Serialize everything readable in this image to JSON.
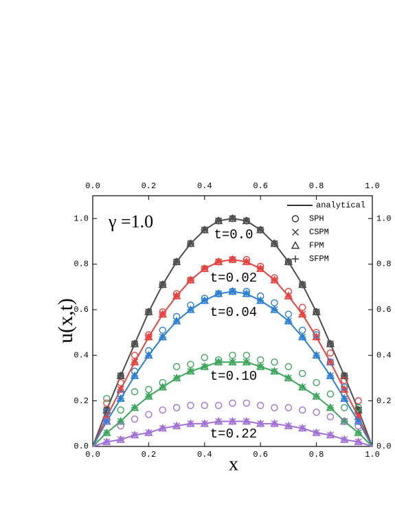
{
  "chart_data": {
    "type": "line",
    "annotation": "γ =1.0",
    "xlabel": "x",
    "ylabel": "u(x,t)",
    "x": [
      0,
      0.05,
      0.1,
      0.15,
      0.2,
      0.25,
      0.3,
      0.35,
      0.4,
      0.45,
      0.5,
      0.55,
      0.6,
      0.65,
      0.7,
      0.75,
      0.8,
      0.85,
      0.9,
      0.95,
      1.0
    ],
    "xlim": [
      0,
      1
    ],
    "ylim": [
      0,
      1.1
    ],
    "xticks": [
      {
        "value": 0,
        "label": "0.0"
      },
      {
        "value": 0.2,
        "label": "0.2"
      },
      {
        "value": 0.4,
        "label": "0.4"
      },
      {
        "value": 0.6,
        "label": "0.6"
      },
      {
        "value": 0.8,
        "label": "0.8"
      },
      {
        "value": 1,
        "label": "1.0"
      }
    ],
    "yticks": [
      {
        "value": 0,
        "label": "0.0"
      },
      {
        "value": 0.2,
        "label": "0.2"
      },
      {
        "value": 0.4,
        "label": "0.4"
      },
      {
        "value": 0.6,
        "label": "0.6"
      },
      {
        "value": 0.8,
        "label": "0.8"
      },
      {
        "value": 1,
        "label": "1.0"
      }
    ],
    "x2ticks": [
      {
        "value": 0,
        "label": "0.0"
      },
      {
        "value": 0.2,
        "label": "0.2"
      },
      {
        "value": 0.4,
        "label": "0.4"
      },
      {
        "value": 0.6,
        "label": "0.6"
      },
      {
        "value": 0.8,
        "label": "0.8"
      },
      {
        "value": 1,
        "label": "1.0"
      }
    ],
    "y2ticks": [
      {
        "value": 0,
        "label": "0.0"
      },
      {
        "value": 0.2,
        "label": "0.2"
      },
      {
        "value": 0.4,
        "label": "0.4"
      },
      {
        "value": 0.6,
        "label": "0.6"
      },
      {
        "value": 0.8,
        "label": "0.8"
      },
      {
        "value": 1,
        "label": "1.0"
      }
    ],
    "legend": {
      "position": "upper right",
      "color": "#333333",
      "entries": [
        {
          "name": "analytical",
          "marker": "line"
        },
        {
          "name": "SPH",
          "marker": "circle"
        },
        {
          "name": "CSPM",
          "marker": "cross"
        },
        {
          "name": "FPM",
          "marker": "triangle"
        },
        {
          "name": "SFPM",
          "marker": "plus"
        }
      ]
    },
    "series": [
      {
        "name": "t=0.0",
        "color": "#4d4d4d",
        "analytical": [
          0,
          0.16,
          0.31,
          0.45,
          0.59,
          0.71,
          0.81,
          0.89,
          0.95,
          0.99,
          1.0,
          0.99,
          0.95,
          0.89,
          0.81,
          0.71,
          0.59,
          0.45,
          0.31,
          0.16,
          0
        ],
        "SPH": [
          null,
          0.16,
          0.31,
          0.45,
          0.59,
          0.71,
          0.81,
          0.89,
          0.95,
          0.99,
          1.0,
          0.99,
          0.95,
          0.89,
          0.81,
          0.71,
          0.59,
          0.45,
          0.31,
          0.16,
          null
        ],
        "CSPM": [
          null,
          0.16,
          0.31,
          0.45,
          0.59,
          0.71,
          0.81,
          0.89,
          0.95,
          0.99,
          1.0,
          0.99,
          0.95,
          0.89,
          0.81,
          0.71,
          0.59,
          0.45,
          0.31,
          0.16,
          null
        ],
        "FPM": [
          null,
          0.16,
          0.31,
          0.45,
          0.59,
          0.71,
          0.81,
          0.89,
          0.95,
          0.99,
          1.0,
          0.99,
          0.95,
          0.89,
          0.81,
          0.71,
          0.59,
          0.45,
          0.31,
          0.16,
          null
        ],
        "SFPM": [
          null,
          0.16,
          0.31,
          0.45,
          0.59,
          0.71,
          0.81,
          0.89,
          0.95,
          0.99,
          1.0,
          0.99,
          0.95,
          0.89,
          0.81,
          0.71,
          0.59,
          0.45,
          0.31,
          0.16,
          null
        ]
      },
      {
        "name": "t=0.02",
        "color": "#e8403c",
        "analytical": [
          0,
          0.13,
          0.25,
          0.37,
          0.48,
          0.58,
          0.66,
          0.73,
          0.78,
          0.81,
          0.82,
          0.81,
          0.78,
          0.73,
          0.66,
          0.58,
          0.48,
          0.37,
          0.25,
          0.13,
          0
        ],
        "SPH": [
          null,
          0.19,
          0.28,
          0.4,
          0.49,
          0.59,
          0.67,
          0.73,
          0.78,
          0.81,
          0.82,
          0.82,
          0.79,
          0.74,
          0.68,
          0.61,
          0.5,
          0.41,
          0.29,
          0.2,
          null
        ],
        "CSPM": [
          null,
          0.13,
          0.25,
          0.37,
          0.48,
          0.58,
          0.66,
          0.73,
          0.78,
          0.81,
          0.82,
          0.81,
          0.78,
          0.73,
          0.66,
          0.58,
          0.48,
          0.37,
          0.25,
          0.13,
          null
        ],
        "FPM": [
          null,
          0.13,
          0.25,
          0.37,
          0.48,
          0.58,
          0.66,
          0.73,
          0.78,
          0.81,
          0.82,
          0.81,
          0.78,
          0.73,
          0.66,
          0.58,
          0.48,
          0.37,
          0.25,
          0.13,
          null
        ],
        "SFPM": [
          null,
          0.13,
          0.25,
          0.37,
          0.48,
          0.58,
          0.66,
          0.73,
          0.78,
          0.81,
          0.82,
          0.81,
          0.78,
          0.73,
          0.66,
          0.58,
          0.48,
          0.37,
          0.25,
          0.13,
          null
        ]
      },
      {
        "name": "t=0.04",
        "color": "#2a7fd4",
        "analytical": [
          0,
          0.11,
          0.21,
          0.31,
          0.4,
          0.48,
          0.55,
          0.6,
          0.64,
          0.67,
          0.68,
          0.67,
          0.64,
          0.6,
          0.55,
          0.48,
          0.4,
          0.31,
          0.21,
          0.11,
          0
        ],
        "SPH": [
          null,
          0.15,
          0.23,
          0.33,
          0.42,
          0.51,
          0.57,
          0.62,
          0.65,
          0.67,
          0.68,
          0.68,
          0.66,
          0.63,
          0.58,
          0.51,
          0.49,
          0.37,
          0.26,
          0.17,
          null
        ],
        "CSPM": [
          null,
          0.11,
          0.21,
          0.31,
          0.4,
          0.48,
          0.55,
          0.6,
          0.64,
          0.67,
          0.68,
          0.67,
          0.64,
          0.6,
          0.55,
          0.48,
          0.4,
          0.31,
          0.21,
          0.11,
          null
        ],
        "FPM": [
          null,
          0.11,
          0.21,
          0.31,
          0.4,
          0.48,
          0.55,
          0.6,
          0.64,
          0.67,
          0.68,
          0.67,
          0.64,
          0.6,
          0.55,
          0.48,
          0.4,
          0.31,
          0.21,
          0.11,
          null
        ],
        "SFPM": [
          null,
          0.11,
          0.21,
          0.31,
          0.4,
          0.48,
          0.55,
          0.6,
          0.64,
          0.67,
          0.68,
          0.67,
          0.64,
          0.6,
          0.55,
          0.48,
          0.4,
          0.31,
          0.21,
          0.11,
          null
        ]
      },
      {
        "name": "t=0.10",
        "color": "#3aa65a",
        "analytical": [
          0,
          0.06,
          0.11,
          0.17,
          0.22,
          0.26,
          0.3,
          0.33,
          0.35,
          0.37,
          0.37,
          0.37,
          0.35,
          0.33,
          0.3,
          0.26,
          0.22,
          0.17,
          0.11,
          0.06,
          0
        ],
        "SPH": [
          null,
          0.21,
          0.16,
          0.24,
          0.25,
          0.28,
          0.35,
          0.36,
          0.39,
          0.38,
          0.4,
          0.4,
          0.38,
          0.37,
          0.35,
          0.32,
          0.28,
          0.23,
          0.17,
          0.17,
          null
        ],
        "CSPM": [
          null,
          0.06,
          0.11,
          0.17,
          0.22,
          0.26,
          0.3,
          0.33,
          0.35,
          0.37,
          0.37,
          0.37,
          0.35,
          0.33,
          0.3,
          0.26,
          0.22,
          0.17,
          0.11,
          0.06,
          null
        ],
        "FPM": [
          null,
          0.06,
          0.11,
          0.17,
          0.22,
          0.26,
          0.3,
          0.33,
          0.35,
          0.37,
          0.37,
          0.37,
          0.35,
          0.33,
          0.3,
          0.26,
          0.22,
          0.17,
          0.11,
          0.06,
          null
        ],
        "SFPM": [
          null,
          0.06,
          0.11,
          0.17,
          0.22,
          0.26,
          0.3,
          0.33,
          0.35,
          0.37,
          0.37,
          0.37,
          0.35,
          0.33,
          0.3,
          0.26,
          0.22,
          0.17,
          0.11,
          0.06,
          null
        ]
      },
      {
        "name": "t=0.22",
        "color": "#a070d6",
        "analytical": [
          0,
          0.02,
          0.03,
          0.05,
          0.06,
          0.08,
          0.09,
          0.1,
          0.1,
          0.11,
          0.11,
          0.11,
          0.1,
          0.1,
          0.09,
          0.08,
          0.06,
          0.05,
          0.03,
          0.02,
          0
        ],
        "SPH": [
          null,
          0.11,
          0.09,
          0.12,
          0.14,
          0.16,
          0.17,
          0.18,
          0.18,
          0.18,
          0.19,
          0.19,
          0.18,
          0.17,
          0.17,
          0.16,
          0.15,
          0.13,
          0.11,
          0.09,
          null
        ],
        "CSPM": [
          null,
          0.02,
          0.03,
          0.05,
          0.06,
          0.08,
          0.09,
          0.1,
          0.1,
          0.11,
          0.11,
          0.11,
          0.1,
          0.1,
          0.09,
          0.08,
          0.06,
          0.05,
          0.03,
          0.02,
          null
        ],
        "FPM": [
          null,
          0.02,
          0.03,
          0.05,
          0.06,
          0.08,
          0.09,
          0.1,
          0.1,
          0.11,
          0.11,
          0.11,
          0.1,
          0.1,
          0.09,
          0.08,
          0.06,
          0.05,
          0.03,
          0.02,
          null
        ],
        "SFPM": [
          null,
          0.02,
          0.03,
          0.05,
          0.06,
          0.08,
          0.09,
          0.1,
          0.1,
          0.11,
          0.11,
          0.11,
          0.1,
          0.1,
          0.09,
          0.08,
          0.06,
          0.05,
          0.03,
          0.02,
          null
        ]
      }
    ]
  }
}
